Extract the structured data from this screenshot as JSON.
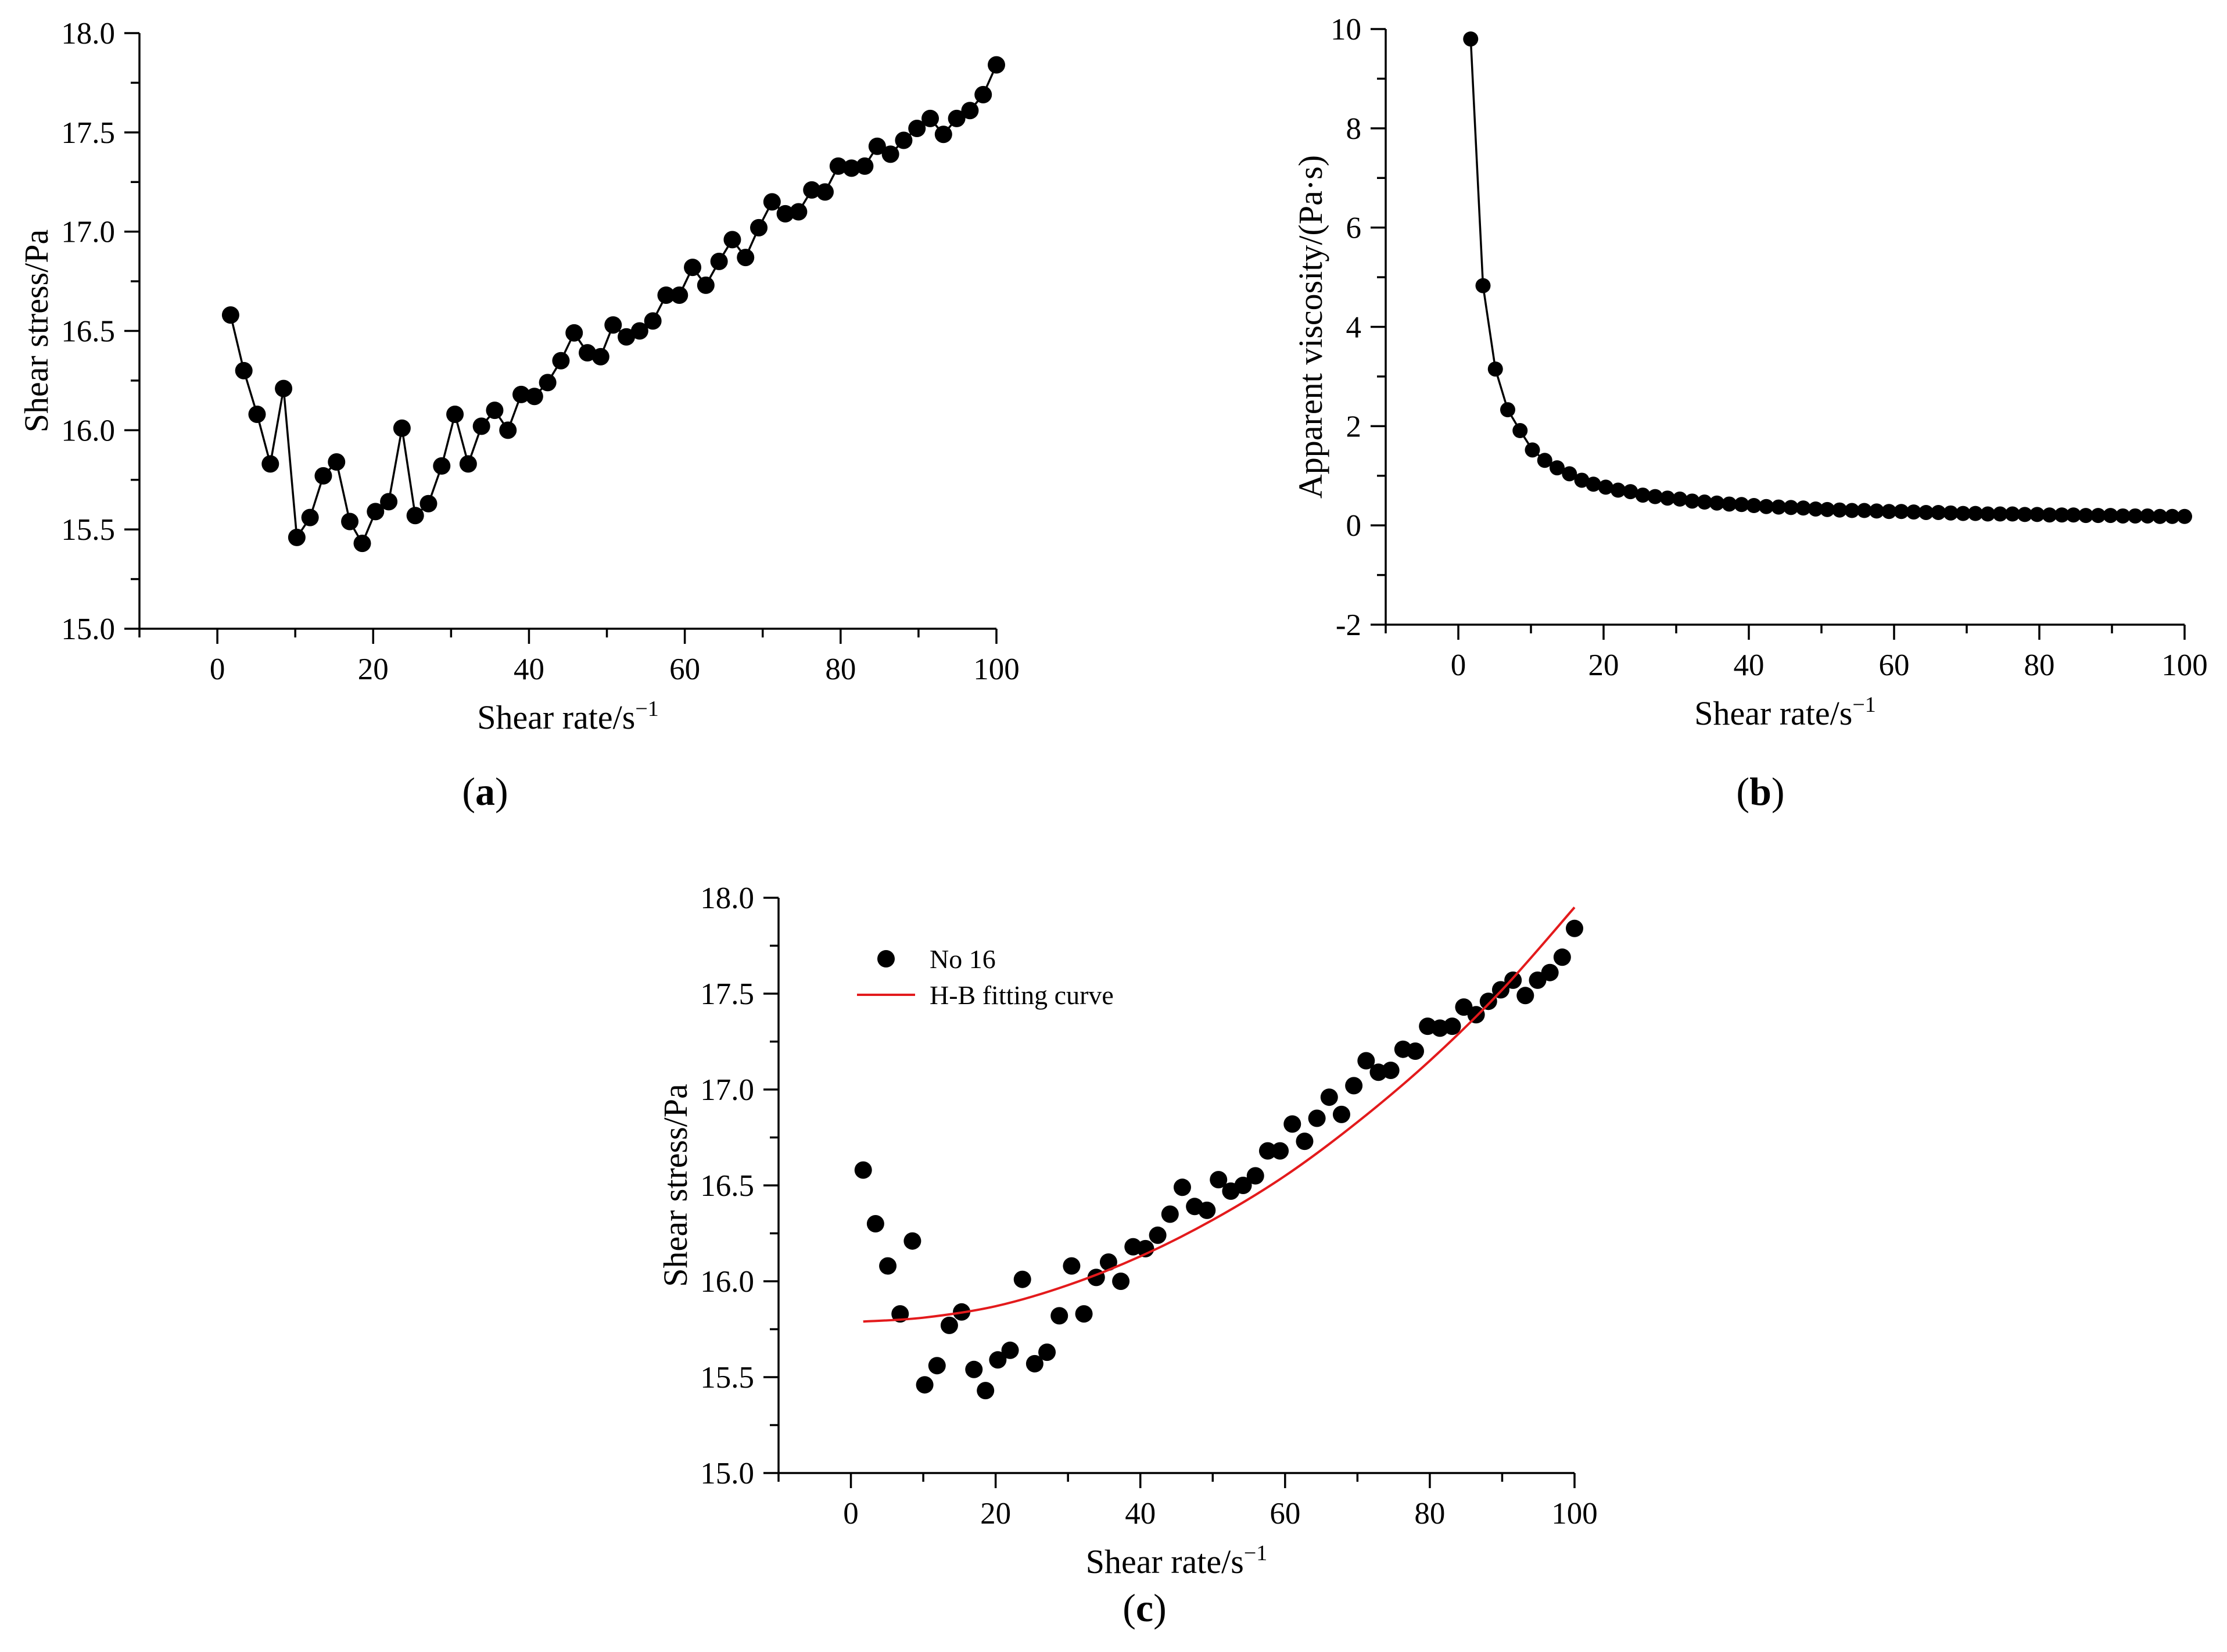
{
  "colors": {
    "marker": "#000000",
    "fit_curve": "#e31a1c"
  },
  "chart_data": [
    {
      "id": "a",
      "type": "line",
      "panel_label": "a",
      "xlabel": "Shear rate/s",
      "xlabel_sup": "−1",
      "ylabel": "Shear stress/Pa",
      "xlim": [
        -10,
        100
      ],
      "ylim": [
        15.0,
        18.0
      ],
      "xticks": [
        0,
        20,
        40,
        60,
        80,
        100
      ],
      "xtick_labels": [
        "0",
        "20",
        "40",
        "60",
        "80",
        "100"
      ],
      "yticks": [
        15.0,
        15.5,
        16.0,
        16.5,
        17.0,
        17.5,
        18.0
      ],
      "ytick_labels": [
        "15.0",
        "15.5",
        "16.0",
        "16.5",
        "17.0",
        "17.5",
        "18.0"
      ],
      "markers": true,
      "connect": true,
      "series": [
        {
          "name": "Shear stress",
          "x": [
            1.7,
            3.4,
            5.1,
            6.8,
            8.5,
            10.2,
            11.9,
            13.6,
            15.3,
            17.0,
            18.6,
            20.3,
            22.0,
            23.7,
            25.4,
            27.1,
            28.8,
            30.5,
            32.2,
            33.9,
            35.6,
            37.3,
            39.0,
            40.7,
            42.4,
            44.1,
            45.8,
            47.5,
            49.2,
            50.8,
            52.5,
            54.2,
            55.9,
            57.6,
            59.3,
            61.0,
            62.7,
            64.4,
            66.1,
            67.8,
            69.5,
            71.2,
            72.9,
            74.6,
            76.3,
            78.0,
            79.7,
            81.4,
            83.1,
            84.7,
            86.4,
            88.1,
            89.8,
            91.5,
            93.2,
            94.9,
            96.6,
            98.3,
            100.0
          ],
          "y": [
            16.58,
            16.3,
            16.08,
            15.83,
            16.21,
            15.46,
            15.56,
            15.77,
            15.84,
            15.54,
            15.43,
            15.59,
            15.64,
            16.01,
            15.57,
            15.63,
            15.82,
            16.08,
            15.83,
            16.02,
            16.1,
            16.0,
            16.18,
            16.17,
            16.24,
            16.35,
            16.49,
            16.39,
            16.37,
            16.53,
            16.47,
            16.5,
            16.55,
            16.68,
            16.68,
            16.82,
            16.73,
            16.85,
            16.96,
            16.87,
            17.02,
            17.15,
            17.09,
            17.1,
            17.21,
            17.2,
            17.33,
            17.32,
            17.33,
            17.43,
            17.39,
            17.46,
            17.52,
            17.57,
            17.49,
            17.57,
            17.61,
            17.69,
            17.84
          ]
        }
      ]
    },
    {
      "id": "b",
      "type": "line",
      "panel_label": "b",
      "xlabel": "Shear rate/s",
      "xlabel_sup": "−1",
      "ylabel": "Apparent viscosity/(Pa·s)",
      "xlim": [
        -10,
        100
      ],
      "ylim": [
        -2,
        10
      ],
      "xticks": [
        0,
        20,
        40,
        60,
        80,
        100
      ],
      "xtick_labels": [
        "0",
        "20",
        "40",
        "60",
        "80",
        "100"
      ],
      "yticks": [
        -2,
        0,
        2,
        4,
        6,
        8,
        10
      ],
      "ytick_labels": [
        "-2",
        "0",
        "2",
        "4",
        "6",
        "8",
        "10"
      ],
      "markers": true,
      "connect": true,
      "series": [
        {
          "name": "Apparent viscosity",
          "x": [
            1.7,
            3.4,
            5.1,
            6.8,
            8.5,
            10.2,
            11.9,
            13.6,
            15.3,
            17.0,
            18.6,
            20.3,
            22.0,
            23.7,
            25.4,
            27.1,
            28.8,
            30.5,
            32.2,
            33.9,
            35.6,
            37.3,
            39.0,
            40.7,
            42.4,
            44.1,
            45.8,
            47.5,
            49.2,
            50.8,
            52.5,
            54.2,
            55.9,
            57.6,
            59.3,
            61.0,
            62.7,
            64.4,
            66.1,
            67.8,
            69.5,
            71.2,
            72.9,
            74.6,
            76.3,
            78.0,
            79.7,
            81.4,
            83.1,
            84.7,
            86.4,
            88.1,
            89.8,
            91.5,
            93.2,
            94.9,
            96.6,
            98.3,
            100.0
          ],
          "y": [
            9.8,
            4.83,
            3.15,
            2.33,
            1.91,
            1.52,
            1.31,
            1.16,
            1.04,
            0.91,
            0.83,
            0.77,
            0.71,
            0.68,
            0.61,
            0.58,
            0.55,
            0.53,
            0.49,
            0.47,
            0.45,
            0.43,
            0.42,
            0.4,
            0.38,
            0.37,
            0.36,
            0.35,
            0.33,
            0.32,
            0.31,
            0.3,
            0.3,
            0.29,
            0.28,
            0.28,
            0.27,
            0.26,
            0.26,
            0.25,
            0.24,
            0.24,
            0.23,
            0.23,
            0.23,
            0.22,
            0.22,
            0.21,
            0.21,
            0.21,
            0.2,
            0.2,
            0.2,
            0.19,
            0.19,
            0.19,
            0.18,
            0.18,
            0.18
          ]
        }
      ]
    },
    {
      "id": "c",
      "type": "scatter",
      "panel_label": "c",
      "xlabel": "Shear rate/s",
      "xlabel_sup": "−1",
      "ylabel": "Shear stress/Pa",
      "xlim": [
        -10,
        100
      ],
      "ylim": [
        15.0,
        18.0
      ],
      "xticks": [
        0,
        20,
        40,
        60,
        80,
        100
      ],
      "xtick_labels": [
        "0",
        "20",
        "40",
        "60",
        "80",
        "100"
      ],
      "yticks": [
        15.0,
        15.5,
        16.0,
        16.5,
        17.0,
        17.5,
        18.0
      ],
      "ytick_labels": [
        "15.0",
        "15.5",
        "16.0",
        "16.5",
        "17.0",
        "17.5",
        "18.0"
      ],
      "legend": {
        "placement": "top-left",
        "entries": [
          "No 16",
          "H-B fitting curve"
        ]
      },
      "series": [
        {
          "name": "No 16",
          "kind": "scatter",
          "x": [
            1.7,
            3.4,
            5.1,
            6.8,
            8.5,
            10.2,
            11.9,
            13.6,
            15.3,
            17.0,
            18.6,
            20.3,
            22.0,
            23.7,
            25.4,
            27.1,
            28.8,
            30.5,
            32.2,
            33.9,
            35.6,
            37.3,
            39.0,
            40.7,
            42.4,
            44.1,
            45.8,
            47.5,
            49.2,
            50.8,
            52.5,
            54.2,
            55.9,
            57.6,
            59.3,
            61.0,
            62.7,
            64.4,
            66.1,
            67.8,
            69.5,
            71.2,
            72.9,
            74.6,
            76.3,
            78.0,
            79.7,
            81.4,
            83.1,
            84.7,
            86.4,
            88.1,
            89.8,
            91.5,
            93.2,
            94.9,
            96.6,
            98.3,
            100.0
          ],
          "y": [
            16.58,
            16.3,
            16.08,
            15.83,
            16.21,
            15.46,
            15.56,
            15.77,
            15.84,
            15.54,
            15.43,
            15.59,
            15.64,
            16.01,
            15.57,
            15.63,
            15.82,
            16.08,
            15.83,
            16.02,
            16.1,
            16.0,
            16.18,
            16.17,
            16.24,
            16.35,
            16.49,
            16.39,
            16.37,
            16.53,
            16.47,
            16.5,
            16.55,
            16.68,
            16.68,
            16.82,
            16.73,
            16.85,
            16.96,
            16.87,
            17.02,
            17.15,
            17.09,
            17.1,
            17.21,
            17.2,
            17.33,
            17.32,
            17.33,
            17.43,
            17.39,
            17.46,
            17.52,
            17.57,
            17.49,
            17.57,
            17.61,
            17.69,
            17.84
          ]
        },
        {
          "name": "H-B fitting curve",
          "kind": "line",
          "x": [
            1.7,
            10,
            20,
            30,
            40,
            50,
            60,
            70,
            80,
            90,
            100
          ],
          "y": [
            15.79,
            15.81,
            15.87,
            15.98,
            16.13,
            16.32,
            16.55,
            16.83,
            17.15,
            17.52,
            17.95
          ]
        }
      ]
    }
  ]
}
